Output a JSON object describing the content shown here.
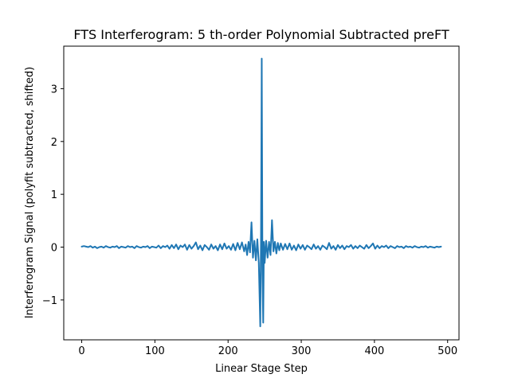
{
  "chart_data": {
    "type": "line",
    "title": "FTS Interferogram: 5 th-order Polynomial Subtracted preFT",
    "xlabel": "Linear Stage Step",
    "ylabel": "Interferogram Signal (polyfit subtracted, shifted)",
    "xlim": [
      -24.55,
      515.55
    ],
    "ylim": [
      -1.755,
      3.805
    ],
    "xticks": [
      0,
      100,
      200,
      300,
      400,
      500
    ],
    "xtick_labels": [
      "0",
      "100",
      "200",
      "300",
      "400",
      "500"
    ],
    "yticks": [
      -1,
      0,
      1,
      2,
      3
    ],
    "ytick_labels": [
      "−1",
      "0",
      "1",
      "2",
      "3"
    ],
    "grid": false,
    "series": [
      {
        "color": "#1f77b4",
        "points": [
          [
            0,
            0.01
          ],
          [
            3,
            0.02
          ],
          [
            6,
            0.01
          ],
          [
            9,
            0.0
          ],
          [
            12,
            0.02
          ],
          [
            15,
            -0.01
          ],
          [
            18,
            0.01
          ],
          [
            21,
            -0.02
          ],
          [
            24,
            0.0
          ],
          [
            27,
            0.01
          ],
          [
            30,
            -0.01
          ],
          [
            33,
            0.02
          ],
          [
            36,
            0.0
          ],
          [
            39,
            -0.01
          ],
          [
            42,
            0.01
          ],
          [
            45,
            0.0
          ],
          [
            48,
            0.02
          ],
          [
            51,
            -0.02
          ],
          [
            54,
            0.01
          ],
          [
            57,
            0.0
          ],
          [
            60,
            -0.01
          ],
          [
            63,
            0.02
          ],
          [
            66,
            0.0
          ],
          [
            69,
            0.01
          ],
          [
            72,
            -0.02
          ],
          [
            75,
            0.02
          ],
          [
            78,
            0.0
          ],
          [
            81,
            -0.01
          ],
          [
            84,
            0.01
          ],
          [
            87,
            0.0
          ],
          [
            90,
            0.02
          ],
          [
            93,
            -0.02
          ],
          [
            96,
            0.01
          ],
          [
            99,
            0.0
          ],
          [
            102,
            -0.01
          ],
          [
            105,
            0.03
          ],
          [
            108,
            -0.02
          ],
          [
            111,
            0.02
          ],
          [
            114,
            0.0
          ],
          [
            117,
            0.03
          ],
          [
            120,
            -0.03
          ],
          [
            123,
            0.04
          ],
          [
            126,
            -0.02
          ],
          [
            129,
            0.05
          ],
          [
            132,
            -0.04
          ],
          [
            135,
            0.03
          ],
          [
            138,
            0.0
          ],
          [
            141,
            0.05
          ],
          [
            144,
            -0.05
          ],
          [
            147,
            0.04
          ],
          [
            150,
            -0.03
          ],
          [
            153,
            0.02
          ],
          [
            156,
            0.09
          ],
          [
            159,
            -0.04
          ],
          [
            162,
            0.03
          ],
          [
            165,
            -0.06
          ],
          [
            168,
            0.04
          ],
          [
            171,
            0.0
          ],
          [
            174,
            -0.05
          ],
          [
            177,
            0.05
          ],
          [
            180,
            -0.03
          ],
          [
            183,
            0.02
          ],
          [
            186,
            -0.06
          ],
          [
            189,
            0.05
          ],
          [
            192,
            -0.04
          ],
          [
            195,
            0.07
          ],
          [
            198,
            -0.03
          ],
          [
            201,
            0.02
          ],
          [
            204,
            -0.05
          ],
          [
            207,
            0.06
          ],
          [
            210,
            -0.06
          ],
          [
            213,
            0.08
          ],
          [
            216,
            -0.04
          ],
          [
            219,
            0.09
          ],
          [
            222,
            -0.08
          ],
          [
            224,
            0.05
          ],
          [
            226,
            -0.15
          ],
          [
            228,
            0.1
          ],
          [
            230,
            -0.1
          ],
          [
            232,
            0.47
          ],
          [
            234,
            -0.2
          ],
          [
            236,
            0.12
          ],
          [
            238,
            -0.25
          ],
          [
            240,
            0.15
          ],
          [
            242,
            -0.3
          ],
          [
            244,
            -1.5
          ],
          [
            245,
            0.2
          ],
          [
            246,
            3.57
          ],
          [
            247,
            -0.5
          ],
          [
            248,
            -1.43
          ],
          [
            249,
            0.1
          ],
          [
            250,
            -0.3
          ],
          [
            252,
            0.12
          ],
          [
            254,
            -0.2
          ],
          [
            256,
            0.1
          ],
          [
            258,
            -0.15
          ],
          [
            260,
            0.51
          ],
          [
            262,
            -0.08
          ],
          [
            264,
            0.1
          ],
          [
            266,
            -0.12
          ],
          [
            268,
            0.08
          ],
          [
            270,
            -0.06
          ],
          [
            272,
            0.07
          ],
          [
            275,
            -0.05
          ],
          [
            278,
            0.06
          ],
          [
            281,
            -0.04
          ],
          [
            284,
            0.07
          ],
          [
            287,
            -0.05
          ],
          [
            290,
            0.03
          ],
          [
            293,
            -0.06
          ],
          [
            296,
            0.05
          ],
          [
            299,
            -0.03
          ],
          [
            302,
            0.04
          ],
          [
            305,
            -0.05
          ],
          [
            308,
            0.03
          ],
          [
            311,
            0.0
          ],
          [
            314,
            -0.04
          ],
          [
            317,
            0.05
          ],
          [
            320,
            -0.03
          ],
          [
            323,
            0.02
          ],
          [
            326,
            -0.05
          ],
          [
            329,
            0.03
          ],
          [
            332,
            0.0
          ],
          [
            335,
            -0.04
          ],
          [
            338,
            0.08
          ],
          [
            341,
            -0.03
          ],
          [
            344,
            0.02
          ],
          [
            347,
            -0.05
          ],
          [
            350,
            0.04
          ],
          [
            353,
            -0.02
          ],
          [
            356,
            0.03
          ],
          [
            359,
            -0.04
          ],
          [
            362,
            0.02
          ],
          [
            365,
            0.0
          ],
          [
            368,
            0.04
          ],
          [
            371,
            -0.03
          ],
          [
            374,
            0.02
          ],
          [
            377,
            -0.02
          ],
          [
            380,
            0.03
          ],
          [
            383,
            0.0
          ],
          [
            386,
            -0.03
          ],
          [
            389,
            0.04
          ],
          [
            392,
            -0.02
          ],
          [
            395,
            0.02
          ],
          [
            398,
            0.07
          ],
          [
            401,
            -0.03
          ],
          [
            404,
            0.03
          ],
          [
            407,
            -0.02
          ],
          [
            410,
            0.02
          ],
          [
            413,
            0.0
          ],
          [
            416,
            0.03
          ],
          [
            419,
            -0.02
          ],
          [
            422,
            0.02
          ],
          [
            425,
            0.0
          ],
          [
            428,
            -0.02
          ],
          [
            431,
            0.02
          ],
          [
            434,
            0.0
          ],
          [
            437,
            0.01
          ],
          [
            440,
            -0.02
          ],
          [
            443,
            0.02
          ],
          [
            446,
            0.0
          ],
          [
            449,
            0.01
          ],
          [
            452,
            -0.01
          ],
          [
            455,
            0.02
          ],
          [
            458,
            0.0
          ],
          [
            461,
            -0.01
          ],
          [
            464,
            0.01
          ],
          [
            467,
            0.0
          ],
          [
            470,
            0.02
          ],
          [
            473,
            -0.01
          ],
          [
            476,
            0.01
          ],
          [
            479,
            0.0
          ],
          [
            482,
            -0.01
          ],
          [
            485,
            0.01
          ],
          [
            488,
            0.0
          ],
          [
            491,
            0.01
          ]
        ]
      }
    ]
  }
}
